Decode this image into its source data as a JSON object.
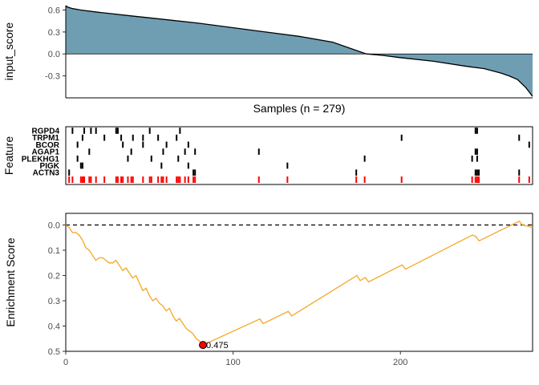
{
  "chart_data": [
    {
      "type": "area",
      "ylabel": "input_score",
      "xlabel": "Samples (n = 279)",
      "n": 279,
      "xlim": [
        1,
        279
      ],
      "ylim": [
        -0.6,
        0.66
      ],
      "yticks": [
        "0.6",
        "0.3",
        "0.0",
        "-0.3"
      ],
      "ytick_values": [
        0.6,
        0.3,
        0.0,
        -0.3
      ],
      "fill_color": "#6F9EB3",
      "line_color": "#000000",
      "curve": [
        [
          1,
          0.66
        ],
        [
          2,
          0.64
        ],
        [
          5,
          0.62
        ],
        [
          10,
          0.6
        ],
        [
          20,
          0.57
        ],
        [
          40,
          0.52
        ],
        [
          60,
          0.47
        ],
        [
          80,
          0.42
        ],
        [
          100,
          0.36
        ],
        [
          120,
          0.3
        ],
        [
          140,
          0.24
        ],
        [
          160,
          0.16
        ],
        [
          175,
          0.04
        ],
        [
          180,
          0.0
        ],
        [
          190,
          -0.02
        ],
        [
          200,
          -0.05
        ],
        [
          220,
          -0.1
        ],
        [
          240,
          -0.17
        ],
        [
          250,
          -0.2
        ],
        [
          260,
          -0.26
        ],
        [
          265,
          -0.3
        ],
        [
          270,
          -0.35
        ],
        [
          275,
          -0.46
        ],
        [
          279,
          -0.58
        ]
      ]
    },
    {
      "type": "heatmap",
      "ylabel": "Feature",
      "features": [
        "RGPD4",
        "TRPM1",
        "BCOR",
        "AGAP1",
        "PLEKHG1",
        "PIGK",
        "ACTN3"
      ],
      "feature_hits": {
        "RGPD4": [
          5,
          12,
          16,
          19,
          31,
          32,
          51,
          69,
          245,
          246
        ],
        "TRPM1": [
          11,
          24,
          34,
          41,
          47,
          56,
          67,
          201,
          271
        ],
        "BCOR": [
          8,
          35,
          47,
          61,
          74,
          277
        ],
        "AGAP1": [
          15,
          40,
          59,
          72,
          78,
          116,
          245,
          246
        ],
        "PLEKHG1": [
          8,
          38,
          52,
          68,
          179,
          243,
          246
        ],
        "PIGK": [
          10,
          11,
          58,
          74,
          133
        ],
        "ACTN3": [
          3,
          77,
          78,
          174,
          245,
          246,
          247,
          271
        ]
      },
      "combined_color": "#FF0000",
      "combined_hits": [
        3,
        5,
        10,
        11,
        12,
        15,
        16,
        19,
        24,
        31,
        32,
        34,
        35,
        38,
        40,
        41,
        47,
        51,
        52,
        56,
        58,
        59,
        61,
        67,
        68,
        69,
        72,
        74,
        77,
        78,
        116,
        133,
        174,
        179,
        201,
        243,
        245,
        246,
        247,
        271,
        277
      ]
    },
    {
      "type": "line",
      "ylabel": "Enrichment Score",
      "xlim": [
        0,
        279
      ],
      "xticks": [
        "0",
        "100",
        "200"
      ],
      "xtick_values": [
        0,
        100,
        200
      ],
      "ylim": [
        0.0,
        0.5
      ],
      "y_reversed": true,
      "yticks": [
        "0.0",
        "0.1",
        "0.2",
        "0.3",
        "0.4",
        "0.5"
      ],
      "ytick_values": [
        0.0,
        0.1,
        0.2,
        0.3,
        0.4,
        0.5
      ],
      "line_color": "#F5A623",
      "reference_line": 0.0,
      "curve": [
        [
          0,
          0.0
        ],
        [
          2,
          0.01
        ],
        [
          4,
          0.03
        ],
        [
          6,
          0.03
        ],
        [
          8,
          0.04
        ],
        [
          10,
          0.06
        ],
        [
          12,
          0.09
        ],
        [
          14,
          0.1
        ],
        [
          16,
          0.12
        ],
        [
          18,
          0.14
        ],
        [
          20,
          0.13
        ],
        [
          22,
          0.13
        ],
        [
          24,
          0.14
        ],
        [
          26,
          0.15
        ],
        [
          28,
          0.15
        ],
        [
          30,
          0.14
        ],
        [
          32,
          0.16
        ],
        [
          34,
          0.18
        ],
        [
          36,
          0.17
        ],
        [
          38,
          0.19
        ],
        [
          40,
          0.21
        ],
        [
          42,
          0.2
        ],
        [
          44,
          0.23
        ],
        [
          46,
          0.26
        ],
        [
          48,
          0.25
        ],
        [
          50,
          0.28
        ],
        [
          52,
          0.3
        ],
        [
          54,
          0.29
        ],
        [
          56,
          0.31
        ],
        [
          58,
          0.32
        ],
        [
          60,
          0.34
        ],
        [
          62,
          0.33
        ],
        [
          64,
          0.36
        ],
        [
          66,
          0.38
        ],
        [
          68,
          0.37
        ],
        [
          70,
          0.39
        ],
        [
          72,
          0.41
        ],
        [
          74,
          0.42
        ],
        [
          76,
          0.43
        ],
        [
          78,
          0.45
        ],
        [
          80,
          0.46
        ],
        [
          82,
          0.475
        ],
        [
          116,
          0.372
        ],
        [
          118,
          0.39
        ],
        [
          133,
          0.342
        ],
        [
          135,
          0.36
        ],
        [
          174,
          0.2
        ],
        [
          176,
          0.22
        ],
        [
          179,
          0.208
        ],
        [
          181,
          0.225
        ],
        [
          201,
          0.158
        ],
        [
          203,
          0.175
        ],
        [
          243,
          0.04
        ],
        [
          245,
          0.045
        ],
        [
          247,
          0.063
        ],
        [
          271,
          -0.015
        ],
        [
          273,
          0.0
        ],
        [
          279,
          0.01
        ]
      ],
      "peak": {
        "x": 82,
        "y": 0.475,
        "label": "0.475",
        "color": "#FF0000"
      }
    }
  ]
}
